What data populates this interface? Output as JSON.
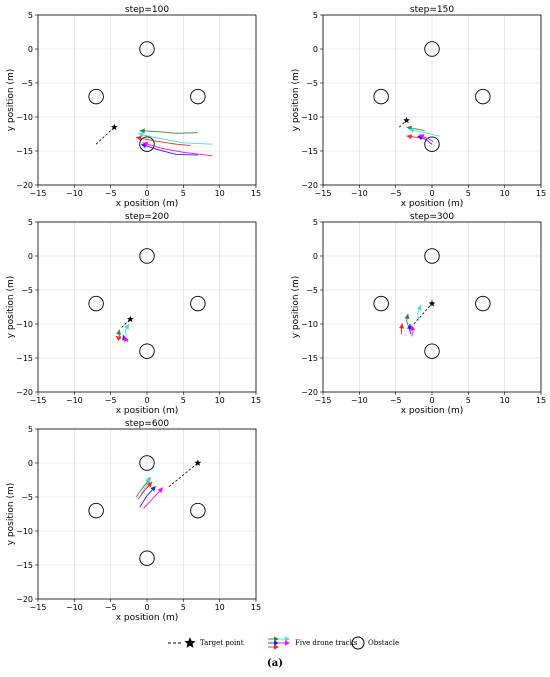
{
  "chart_data": [
    {
      "type": "line",
      "title": "step=100",
      "xlabel": "x position (m)",
      "ylabel": "y position (m)",
      "xlim": [
        -15,
        15
      ],
      "ylim": [
        -20,
        5
      ],
      "xticks": [
        -15,
        -10,
        -5,
        0,
        5,
        10,
        15
      ],
      "yticks": [
        -20,
        -15,
        -10,
        -5,
        0,
        5
      ],
      "grid": true,
      "obstacles": [
        [
          0,
          0
        ],
        [
          -7,
          -7
        ],
        [
          7,
          -7
        ],
        [
          0,
          -14
        ]
      ],
      "target": [
        -4.5,
        -11.5
      ],
      "target_path": [
        [
          -7,
          -14
        ],
        [
          -4.5,
          -11.5
        ]
      ],
      "series": [
        {
          "color": "#2e8b2e",
          "points": [
            [
              -1,
              -12
            ],
            [
              2,
              -12.2
            ],
            [
              4,
              -12.4
            ],
            [
              7,
              -12.3
            ]
          ]
        },
        {
          "color": "#40e0d0",
          "points": [
            [
              -1.2,
              -12.5
            ],
            [
              2,
              -13.2
            ],
            [
              5,
              -13.8
            ],
            [
              9,
              -14
            ]
          ]
        },
        {
          "color": "#ff2020",
          "points": [
            [
              -1.5,
              -13
            ],
            [
              1,
              -13.5
            ],
            [
              4,
              -14
            ],
            [
              6,
              -14.2
            ]
          ]
        },
        {
          "color": "#2020ff",
          "points": [
            [
              -0.8,
              -14
            ],
            [
              1.5,
              -14.8
            ],
            [
              4,
              -15.5
            ],
            [
              7,
              -15.6
            ]
          ]
        },
        {
          "color": "#ff00ff",
          "points": [
            [
              -0.6,
              -13.8
            ],
            [
              2,
              -14.6
            ],
            [
              5,
              -15.2
            ],
            [
              9,
              -15.7
            ]
          ]
        }
      ]
    },
    {
      "type": "line",
      "title": "step=150",
      "xlabel": "x position (m)",
      "ylabel": "y position (m)",
      "xlim": [
        -15,
        15
      ],
      "ylim": [
        -20,
        5
      ],
      "xticks": [
        -15,
        -10,
        -5,
        0,
        5,
        10,
        15
      ],
      "yticks": [
        -20,
        -15,
        -10,
        -5,
        0,
        5
      ],
      "grid": true,
      "obstacles": [
        [
          0,
          0
        ],
        [
          -7,
          -7
        ],
        [
          7,
          -7
        ],
        [
          0,
          -14
        ]
      ],
      "target": [
        -3.5,
        -10.5
      ],
      "target_path": [
        [
          -4.5,
          -11.5
        ],
        [
          -3.5,
          -10.5
        ]
      ],
      "series": [
        {
          "color": "#2e8b2e",
          "points": [
            [
              -3.5,
              -11.5
            ],
            [
              -2,
              -11.8
            ],
            [
              -1,
              -12
            ]
          ]
        },
        {
          "color": "#40e0d0",
          "points": [
            [
              -3.2,
              -11.8
            ],
            [
              -1,
              -12.3
            ],
            [
              1,
              -12.8
            ]
          ]
        },
        {
          "color": "#ff2020",
          "points": [
            [
              -3.5,
              -12.8
            ],
            [
              -2,
              -13
            ],
            [
              -1,
              -13.2
            ]
          ]
        },
        {
          "color": "#2020ff",
          "points": [
            [
              -2,
              -12.8
            ],
            [
              -1,
              -13.2
            ],
            [
              0,
              -14
            ]
          ]
        },
        {
          "color": "#ff00ff",
          "points": [
            [
              -1.8,
              -12.6
            ],
            [
              -0.5,
              -13.2
            ],
            [
              0.2,
              -13.6
            ]
          ]
        }
      ]
    },
    {
      "type": "line",
      "title": "step=200",
      "xlabel": "x position (m)",
      "ylabel": "y position (m)",
      "xlim": [
        -15,
        15
      ],
      "ylim": [
        -20,
        5
      ],
      "xticks": [
        -15,
        -10,
        -5,
        0,
        5,
        10,
        15
      ],
      "yticks": [
        -20,
        -15,
        -10,
        -5,
        0,
        5
      ],
      "grid": true,
      "obstacles": [
        [
          0,
          0
        ],
        [
          -7,
          -7
        ],
        [
          7,
          -7
        ],
        [
          0,
          -14
        ]
      ],
      "target": [
        -2.3,
        -9.3
      ],
      "target_path": [
        [
          -3.5,
          -10.5
        ],
        [
          -2.3,
          -9.3
        ]
      ],
      "series": [
        {
          "color": "#2e8b2e",
          "points": [
            [
              -3.8,
              -10.8
            ],
            [
              -3.9,
              -11.5
            ],
            [
              -3.6,
              -12
            ]
          ]
        },
        {
          "color": "#40e0d0",
          "points": [
            [
              -2.5,
              -10
            ],
            [
              -3,
              -11
            ],
            [
              -2.8,
              -11.8
            ]
          ]
        },
        {
          "color": "#ff2020",
          "points": [
            [
              -4.3,
              -11.8
            ],
            [
              -4,
              -12
            ],
            [
              -3.6,
              -12.2
            ]
          ]
        },
        {
          "color": "#2020ff",
          "points": [
            [
              -3.3,
              -11.6
            ],
            [
              -3.1,
              -12.2
            ],
            [
              -2.8,
              -12.5
            ]
          ]
        },
        {
          "color": "#ff00ff",
          "points": [
            [
              -3.1,
              -11.8
            ],
            [
              -2.9,
              -12.3
            ],
            [
              -2.6,
              -12.6
            ]
          ]
        }
      ]
    },
    {
      "type": "line",
      "title": "step=300",
      "xlabel": "x position (m)",
      "ylabel": "y position (m)",
      "xlim": [
        -15,
        15
      ],
      "ylim": [
        -20,
        5
      ],
      "xticks": [
        -15,
        -10,
        -5,
        0,
        5,
        10,
        15
      ],
      "yticks": [
        -20,
        -15,
        -10,
        -5,
        0,
        5
      ],
      "grid": true,
      "obstacles": [
        [
          0,
          0
        ],
        [
          -7,
          -7
        ],
        [
          7,
          -7
        ],
        [
          0,
          -14
        ]
      ],
      "target": [
        0,
        -7
      ],
      "target_path": [
        [
          -2.5,
          -10
        ],
        [
          0,
          -7
        ]
      ],
      "series": [
        {
          "color": "#2e8b2e",
          "points": [
            [
              -3.3,
              -8.5
            ],
            [
              -3.5,
              -9.5
            ],
            [
              -3.2,
              -10.5
            ]
          ]
        },
        {
          "color": "#40e0d0",
          "points": [
            [
              -1.5,
              -7.2
            ],
            [
              -2,
              -8.5
            ],
            [
              -1.8,
              -9.5
            ]
          ]
        },
        {
          "color": "#ff2020",
          "points": [
            [
              -4.1,
              -9.9
            ],
            [
              -4.2,
              -10.8
            ],
            [
              -4.2,
              -11.5
            ]
          ]
        },
        {
          "color": "#2020ff",
          "points": [
            [
              -3,
              -10
            ],
            [
              -3.1,
              -10.8
            ],
            [
              -2.9,
              -11.5
            ]
          ]
        },
        {
          "color": "#ff00ff",
          "points": [
            [
              -2.8,
              -10.2
            ],
            [
              -2.6,
              -11.1
            ],
            [
              -2.8,
              -11.8
            ]
          ]
        }
      ]
    },
    {
      "type": "line",
      "title": "step=600",
      "xlabel": "x position (m)",
      "ylabel": "y position (m)",
      "xlim": [
        -15,
        15
      ],
      "ylim": [
        -20,
        5
      ],
      "xticks": [
        -15,
        -10,
        -5,
        0,
        5,
        10,
        15
      ],
      "yticks": [
        -20,
        -15,
        -10,
        -5,
        0,
        5
      ],
      "grid": true,
      "obstacles": [
        [
          0,
          0
        ],
        [
          -7,
          -7
        ],
        [
          7,
          -7
        ],
        [
          0,
          -14
        ]
      ],
      "target": [
        7,
        0
      ],
      "target_path": [
        [
          3,
          -3.5
        ],
        [
          7,
          0
        ]
      ],
      "series": [
        {
          "color": "#2e8b2e",
          "points": [
            [
              0.5,
              -2.2
            ],
            [
              -0.5,
              -3.5
            ],
            [
              -1.5,
              -5
            ]
          ]
        },
        {
          "color": "#40e0d0",
          "points": [
            [
              0.3,
              -2
            ],
            [
              0,
              -3.2
            ],
            [
              -0.8,
              -4.5
            ]
          ]
        },
        {
          "color": "#ff2020",
          "points": [
            [
              0.7,
              -2.8
            ],
            [
              -0.3,
              -4
            ],
            [
              -1.2,
              -5.3
            ]
          ]
        },
        {
          "color": "#2020ff",
          "points": [
            [
              1.2,
              -3.4
            ],
            [
              0,
              -4.8
            ],
            [
              -1,
              -6.5
            ]
          ]
        },
        {
          "color": "#ff00ff",
          "points": [
            [
              2.2,
              -3.6
            ],
            [
              1,
              -5
            ],
            [
              -0.5,
              -6.7
            ]
          ]
        }
      ]
    }
  ],
  "legend": {
    "target_label": "Target point",
    "tracks_label": "Five drone tracks",
    "obstacle_label": "Obstacle",
    "track_colors": [
      "#2e8b2e",
      "#40e0d0",
      "#2020ff",
      "#ff00ff",
      "#ff2020"
    ]
  },
  "caption": "(a)"
}
